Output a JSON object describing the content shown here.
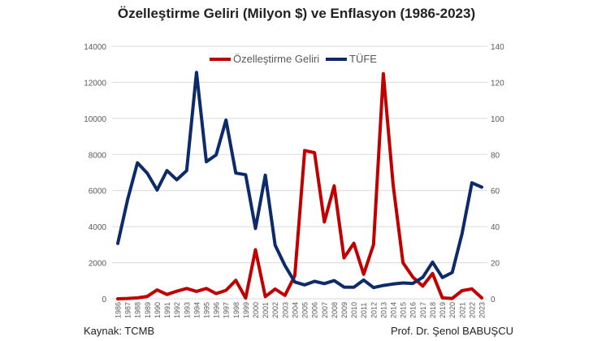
{
  "chart_data": {
    "type": "line",
    "title": "Özelleştirme Geliri (Milyon $) ve Enflasyon (1986-2023)",
    "x": [
      1986,
      1987,
      1988,
      1989,
      1990,
      1991,
      1992,
      1993,
      1994,
      1995,
      1996,
      1997,
      1998,
      1999,
      2000,
      2001,
      2002,
      2003,
      2004,
      2005,
      2006,
      2007,
      2008,
      2009,
      2010,
      2011,
      2012,
      2013,
      2014,
      2015,
      2016,
      2017,
      2018,
      2019,
      2020,
      2021,
      2022,
      2023
    ],
    "series": [
      {
        "name": "Özelleştirme Geliri",
        "axis": "left",
        "color": "#c00000",
        "values": [
          0,
          20,
          50,
          130,
          490,
          240,
          420,
          570,
          410,
          570,
          290,
          470,
          1020,
          40,
          2720,
          120,
          540,
          190,
          1280,
          8220,
          8100,
          4260,
          6260,
          2270,
          3080,
          1360,
          3000,
          12480,
          6300,
          2000,
          1200,
          700,
          1400,
          50,
          20,
          450,
          550,
          50
        ]
      },
      {
        "name": "TÜFE",
        "axis": "right",
        "color": "#0d2a6b",
        "values": [
          30.7,
          55,
          75.4,
          69.6,
          60.3,
          71.1,
          66,
          71.1,
          125.5,
          76,
          79.8,
          99.1,
          69.7,
          68.8,
          39,
          68.5,
          29.7,
          18.4,
          9.3,
          7.7,
          9.7,
          8.4,
          10.1,
          6.5,
          6.4,
          10.4,
          6.2,
          7.4,
          8.2,
          8.8,
          8.5,
          11.9,
          20.3,
          11.8,
          14.6,
          36.1,
          64.3,
          61.9
        ]
      }
    ],
    "ylim_left": [
      0,
      14000
    ],
    "yticks_left": [
      "0",
      "2000",
      "4000",
      "6000",
      "8000",
      "10000",
      "12000",
      "14000"
    ],
    "ylim_right": [
      0,
      140
    ],
    "yticks_right": [
      "0",
      "20",
      "40",
      "60",
      "80",
      "100",
      "120",
      "140"
    ],
    "grid": true,
    "legend": "top-center"
  },
  "footer": {
    "source": "Kaynak: TCMB",
    "author": "Prof. Dr. Şenol BABUŞCU"
  }
}
